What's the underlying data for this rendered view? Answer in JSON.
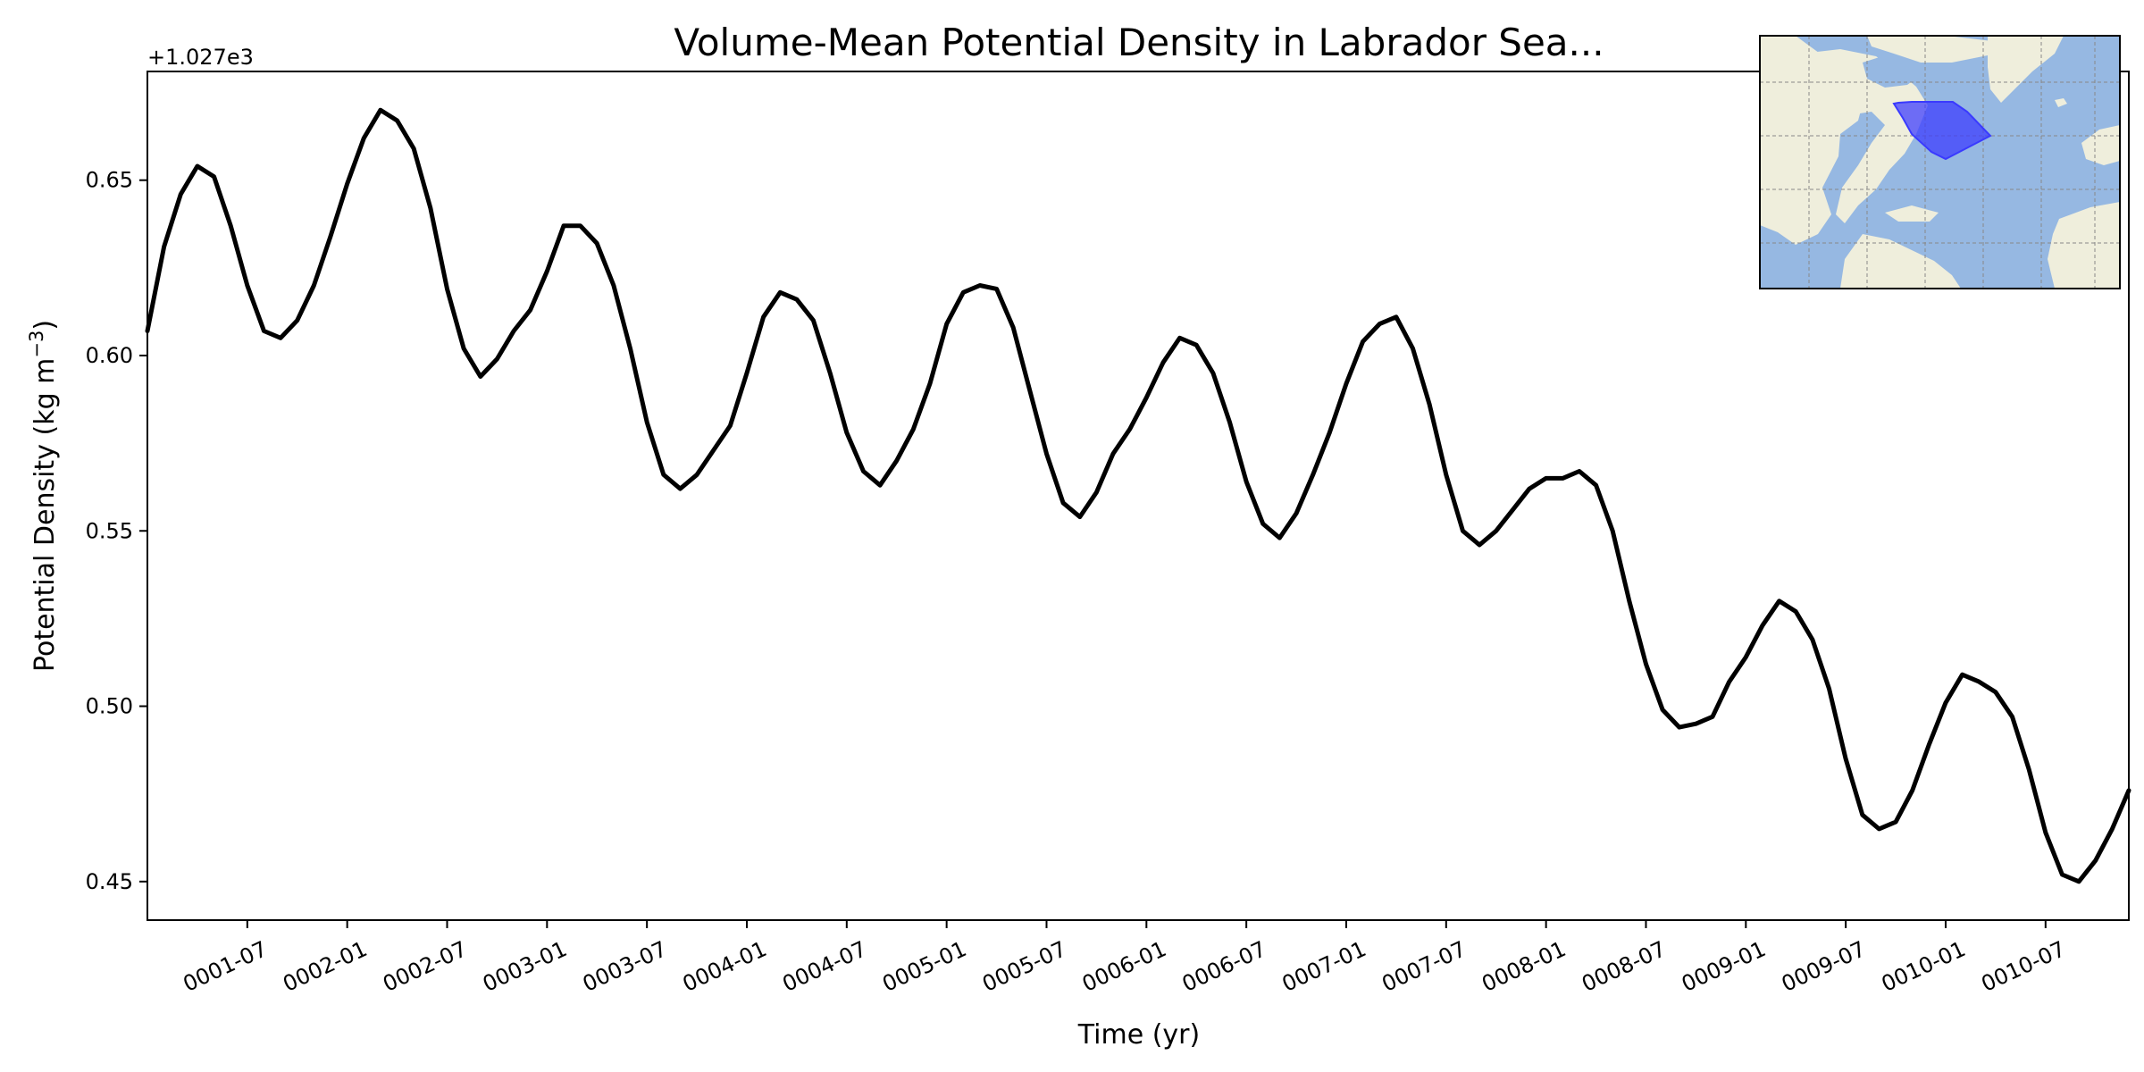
{
  "chart_data": {
    "type": "line",
    "title": "Volume-Mean Potential Density in Labrador Sea...",
    "xlabel": "Time (yr)",
    "ylabel": "Potential Density (kg m",
    "ylabel_superscript": "−3",
    "ylabel_suffix": ")",
    "y_offset_label": "+1.027e3",
    "xlim": [
      "0001-01",
      "0010-12"
    ],
    "ylim": [
      0.439,
      0.681
    ],
    "yticks": [
      0.45,
      0.5,
      0.55,
      0.6,
      0.65
    ],
    "ytick_labels": [
      "0.45",
      "0.50",
      "0.55",
      "0.60",
      "0.65"
    ],
    "xticks": [
      "0001-07",
      "0002-01",
      "0002-07",
      "0003-01",
      "0003-07",
      "0004-01",
      "0004-07",
      "0005-01",
      "0005-07",
      "0006-01",
      "0006-07",
      "0007-01",
      "0007-07",
      "0008-01",
      "0008-07",
      "0009-01",
      "0009-07",
      "0010-01",
      "0010-07"
    ],
    "grid": false,
    "legend": "none",
    "series": [
      {
        "color": "#000000",
        "x": [
          "0001-01",
          "0001-02",
          "0001-03",
          "0001-04",
          "0001-05",
          "0001-06",
          "0001-07",
          "0001-08",
          "0001-09",
          "0001-10",
          "0001-11",
          "0001-12",
          "0002-01",
          "0002-02",
          "0002-03",
          "0002-04",
          "0002-05",
          "0002-06",
          "0002-07",
          "0002-08",
          "0002-09",
          "0002-10",
          "0002-11",
          "0002-12",
          "0003-01",
          "0003-02",
          "0003-03",
          "0003-04",
          "0003-05",
          "0003-06",
          "0003-07",
          "0003-08",
          "0003-09",
          "0003-10",
          "0003-11",
          "0003-12",
          "0004-01",
          "0004-02",
          "0004-03",
          "0004-04",
          "0004-05",
          "0004-06",
          "0004-07",
          "0004-08",
          "0004-09",
          "0004-10",
          "0004-11",
          "0004-12",
          "0005-01",
          "0005-02",
          "0005-03",
          "0005-04",
          "0005-05",
          "0005-06",
          "0005-07",
          "0005-08",
          "0005-09",
          "0005-10",
          "0005-11",
          "0005-12",
          "0006-01",
          "0006-02",
          "0006-03",
          "0006-04",
          "0006-05",
          "0006-06",
          "0006-07",
          "0006-08",
          "0006-09",
          "0006-10",
          "0006-11",
          "0006-12",
          "0007-01",
          "0007-02",
          "0007-03",
          "0007-04",
          "0007-05",
          "0007-06",
          "0007-07",
          "0007-08",
          "0007-09",
          "0007-10",
          "0007-11",
          "0007-12",
          "0008-01",
          "0008-02",
          "0008-03",
          "0008-04",
          "0008-05",
          "0008-06",
          "0008-07",
          "0008-08",
          "0008-09",
          "0008-10",
          "0008-11",
          "0008-12",
          "0009-01",
          "0009-02",
          "0009-03",
          "0009-04",
          "0009-05",
          "0009-06",
          "0009-07",
          "0009-08",
          "0009-09",
          "0009-10",
          "0009-11",
          "0009-12",
          "0010-01",
          "0010-02",
          "0010-03",
          "0010-04",
          "0010-05",
          "0010-06",
          "0010-07",
          "0010-08",
          "0010-09",
          "0010-10",
          "0010-11",
          "0010-12"
        ],
        "values": [
          0.607,
          0.631,
          0.646,
          0.654,
          0.651,
          0.637,
          0.62,
          0.607,
          0.605,
          0.61,
          0.62,
          0.634,
          0.649,
          0.662,
          0.67,
          0.667,
          0.659,
          0.642,
          0.619,
          0.602,
          0.594,
          0.599,
          0.607,
          0.613,
          0.624,
          0.637,
          0.637,
          0.632,
          0.62,
          0.602,
          0.581,
          0.566,
          0.562,
          0.566,
          0.573,
          0.58,
          0.595,
          0.611,
          0.618,
          0.616,
          0.61,
          0.595,
          0.578,
          0.567,
          0.563,
          0.57,
          0.579,
          0.592,
          0.609,
          0.618,
          0.62,
          0.619,
          0.608,
          0.59,
          0.572,
          0.558,
          0.554,
          0.561,
          0.572,
          0.579,
          0.588,
          0.598,
          0.605,
          0.603,
          0.595,
          0.581,
          0.564,
          0.552,
          0.548,
          0.555,
          0.566,
          0.578,
          0.592,
          0.604,
          0.609,
          0.611,
          0.602,
          0.586,
          0.566,
          0.55,
          0.546,
          0.55,
          0.556,
          0.562,
          0.565,
          0.565,
          0.567,
          0.563,
          0.55,
          0.53,
          0.512,
          0.499,
          0.494,
          0.495,
          0.497,
          0.507,
          0.514,
          0.523,
          0.53,
          0.527,
          0.519,
          0.505,
          0.485,
          0.469,
          0.465,
          0.467,
          0.476,
          0.489,
          0.501,
          0.509,
          0.507,
          0.504,
          0.497,
          0.482,
          0.464,
          0.452,
          0.45,
          0.456,
          0.465,
          0.476
        ]
      }
    ],
    "inset": {
      "type": "map",
      "region": "Labrador Sea",
      "highlight_color": "#3a3aff",
      "ocean_color": "#96b8e2",
      "land_color": "#efeedc"
    }
  }
}
